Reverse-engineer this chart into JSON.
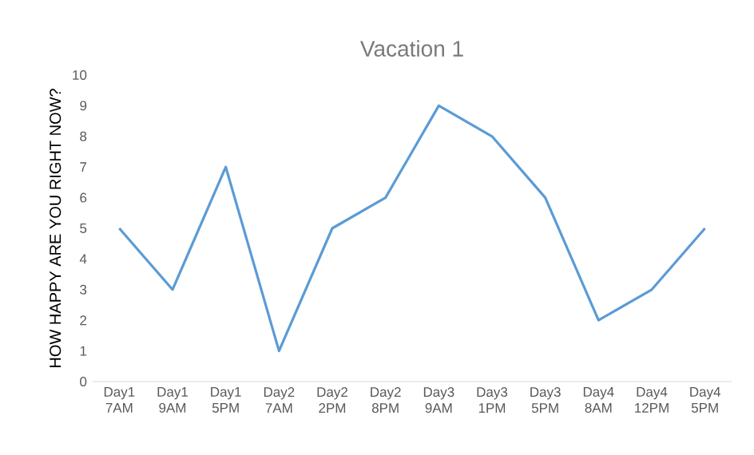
{
  "chart_data": {
    "type": "line",
    "title": "Vacation 1",
    "ylabel": "HOW HAPPY ARE YOU RIGHT NOW?",
    "categories": [
      "Day1 7AM",
      "Day1 9AM",
      "Day1 5PM",
      "Day2 7AM",
      "Day2 2PM",
      "Day2 8PM",
      "Day3 9AM",
      "Day3 1PM",
      "Day3 5PM",
      "Day4 8AM",
      "Day4 12PM",
      "Day4 5PM"
    ],
    "values": [
      5,
      3,
      7,
      1,
      5,
      6,
      9,
      8,
      6,
      2,
      3,
      5
    ],
    "color": "#5b9bd5",
    "ylim": [
      0,
      10
    ],
    "yticks": [
      0,
      1,
      2,
      3,
      4,
      5,
      6,
      7,
      8,
      9,
      10
    ],
    "grid": false,
    "marker": "none",
    "line_style": "solid"
  }
}
